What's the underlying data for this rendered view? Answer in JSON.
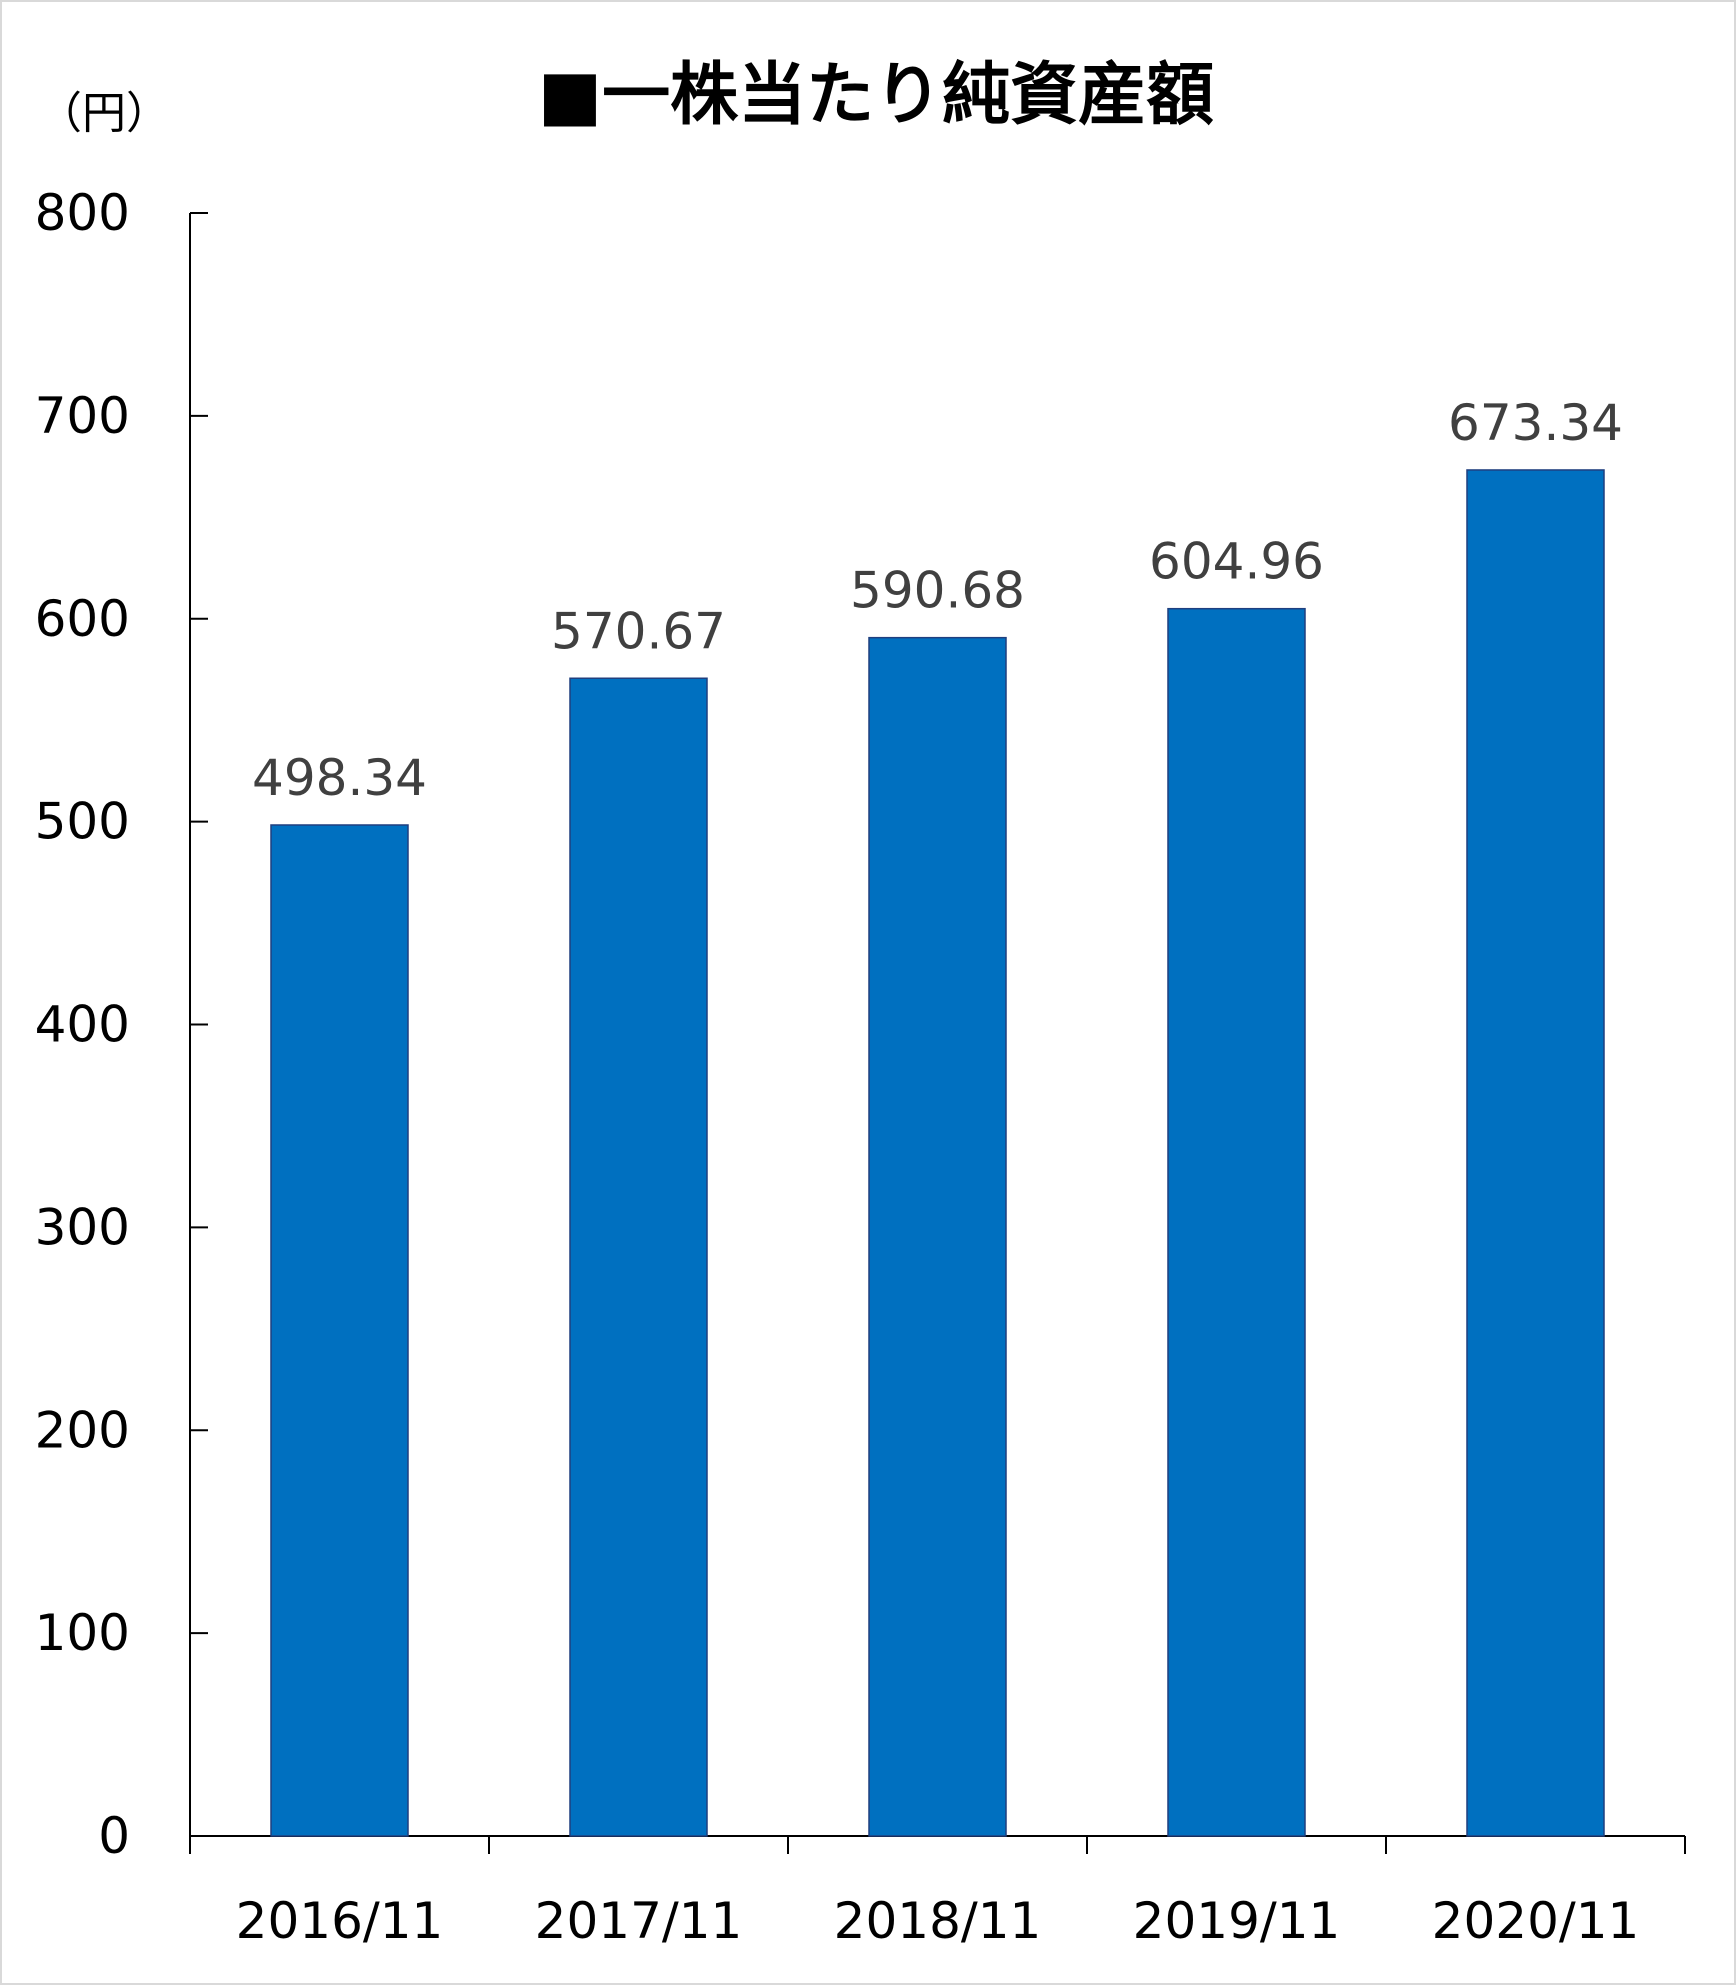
{
  "chart_data": {
    "type": "bar",
    "title": "■一株当たり純資産額",
    "unit_label": "（円）",
    "categories": [
      "2016/11",
      "2017/11",
      "2018/11",
      "2019/11",
      "2020/11"
    ],
    "values": [
      498.34,
      570.67,
      590.68,
      604.96,
      673.34
    ],
    "data_labels": [
      "498.34",
      "570.67",
      "590.68",
      "604.96",
      "673.34"
    ],
    "ylim": [
      0,
      800
    ],
    "yticks": [
      0,
      100,
      200,
      300,
      400,
      500,
      600,
      700,
      800
    ],
    "grid": false,
    "legend": "none",
    "colors": {
      "bar": "#0070C0",
      "bar_border": "#1F3F7F",
      "data_label": "#404040"
    }
  }
}
